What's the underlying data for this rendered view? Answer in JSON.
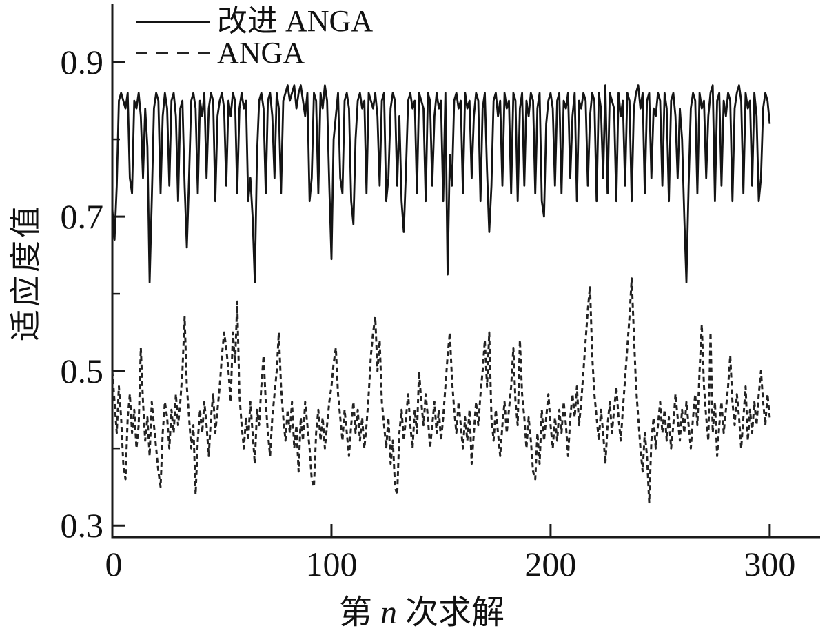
{
  "figure": {
    "background": "#ffffff",
    "axis_color": "#1a1a1a",
    "text_color": "#111111"
  },
  "legend": {
    "items": [
      {
        "label": "改进 ANGA",
        "style": "solid"
      },
      {
        "label": "ANGA",
        "style": "dashed"
      }
    ]
  },
  "axes": {
    "y_title": "适应度值",
    "x_title_prefix": "第",
    "x_title_var": "n",
    "x_title_suffix": "次求解"
  },
  "chart_data": {
    "type": "line",
    "title": "",
    "xlabel": "第 n 次求解",
    "ylabel": "适应度值",
    "xlim": [
      0,
      323
    ],
    "ylim": [
      0.285,
      0.975
    ],
    "xticks": [
      0,
      100,
      200,
      300
    ],
    "xtick_labels": [
      "0",
      "100",
      "200",
      "300"
    ],
    "yticks": [
      0.9,
      0.7,
      0.5,
      0.3
    ],
    "ytick_labels": [
      "0.9",
      "0.7",
      "0.5",
      "0.3"
    ],
    "y_minor_ticks": [
      0.8,
      0.6,
      0.4
    ],
    "grid": false,
    "legend_position": "top-left",
    "x_step": 1,
    "series": [
      {
        "name": "改进 ANGA",
        "line": "solid",
        "color": "#141414",
        "width": 2.8,
        "values": [
          0.71,
          0.67,
          0.74,
          0.85,
          0.86,
          0.85,
          0.84,
          0.86,
          0.75,
          0.73,
          0.85,
          0.84,
          0.86,
          0.83,
          0.75,
          0.84,
          0.79,
          0.615,
          0.72,
          0.84,
          0.86,
          0.85,
          0.73,
          0.83,
          0.86,
          0.84,
          0.74,
          0.85,
          0.86,
          0.83,
          0.72,
          0.84,
          0.85,
          0.74,
          0.66,
          0.75,
          0.85,
          0.86,
          0.84,
          0.73,
          0.85,
          0.83,
          0.86,
          0.75,
          0.84,
          0.86,
          0.85,
          0.72,
          0.83,
          0.85,
          0.86,
          0.84,
          0.74,
          0.85,
          0.83,
          0.86,
          0.85,
          0.73,
          0.84,
          0.86,
          0.84,
          0.85,
          0.72,
          0.75,
          0.7,
          0.615,
          0.78,
          0.85,
          0.86,
          0.84,
          0.73,
          0.85,
          0.86,
          0.83,
          0.75,
          0.86,
          0.84,
          0.73,
          0.85,
          0.86,
          0.87,
          0.85,
          0.86,
          0.87,
          0.84,
          0.86,
          0.87,
          0.85,
          0.83,
          0.86,
          0.72,
          0.75,
          0.86,
          0.85,
          0.73,
          0.86,
          0.84,
          0.87,
          0.85,
          0.74,
          0.645,
          0.8,
          0.83,
          0.86,
          0.75,
          0.73,
          0.85,
          0.86,
          0.84,
          0.72,
          0.69,
          0.8,
          0.85,
          0.86,
          0.84,
          0.85,
          0.73,
          0.86,
          0.85,
          0.84,
          0.86,
          0.83,
          0.74,
          0.85,
          0.86,
          0.72,
          0.75,
          0.84,
          0.86,
          0.85,
          0.74,
          0.83,
          0.72,
          0.68,
          0.76,
          0.85,
          0.86,
          0.84,
          0.85,
          0.73,
          0.86,
          0.85,
          0.84,
          0.72,
          0.86,
          0.85,
          0.74,
          0.83,
          0.86,
          0.84,
          0.85,
          0.72,
          0.86,
          0.625,
          0.78,
          0.74,
          0.85,
          0.86,
          0.84,
          0.85,
          0.73,
          0.86,
          0.84,
          0.85,
          0.75,
          0.83,
          0.86,
          0.85,
          0.72,
          0.84,
          0.86,
          0.76,
          0.68,
          0.74,
          0.85,
          0.86,
          0.83,
          0.85,
          0.74,
          0.86,
          0.84,
          0.85,
          0.73,
          0.86,
          0.85,
          0.72,
          0.84,
          0.86,
          0.74,
          0.85,
          0.83,
          0.86,
          0.85,
          0.73,
          0.84,
          0.86,
          0.72,
          0.7,
          0.82,
          0.85,
          0.86,
          0.84,
          0.74,
          0.85,
          0.86,
          0.73,
          0.85,
          0.84,
          0.86,
          0.75,
          0.83,
          0.86,
          0.72,
          0.85,
          0.84,
          0.86,
          0.85,
          0.74,
          0.83,
          0.86,
          0.85,
          0.72,
          0.86,
          0.84,
          0.75,
          0.87,
          0.73,
          0.86,
          0.85,
          0.84,
          0.72,
          0.86,
          0.83,
          0.85,
          0.74,
          0.86,
          0.85,
          0.72,
          0.84,
          0.86,
          0.87,
          0.84,
          0.86,
          0.73,
          0.85,
          0.86,
          0.75,
          0.84,
          0.83,
          0.86,
          0.85,
          0.74,
          0.86,
          0.84,
          0.72,
          0.85,
          0.86,
          0.83,
          0.75,
          0.84,
          0.8,
          0.7,
          0.615,
          0.74,
          0.84,
          0.86,
          0.85,
          0.73,
          0.86,
          0.84,
          0.85,
          0.75,
          0.83,
          0.86,
          0.87,
          0.72,
          0.85,
          0.86,
          0.74,
          0.85,
          0.83,
          0.86,
          0.85,
          0.72,
          0.84,
          0.86,
          0.87,
          0.85,
          0.73,
          0.86,
          0.84,
          0.85,
          0.74,
          0.86,
          0.83,
          0.72,
          0.75,
          0.84,
          0.86,
          0.85,
          0.82
        ]
      },
      {
        "name": "ANGA",
        "line": "dashed",
        "color": "#232323",
        "width": 3,
        "dash": "7 5",
        "values": [
          0.5,
          0.46,
          0.42,
          0.48,
          0.44,
          0.38,
          0.36,
          0.44,
          0.47,
          0.42,
          0.45,
          0.4,
          0.43,
          0.53,
          0.46,
          0.41,
          0.44,
          0.39,
          0.46,
          0.43,
          0.4,
          0.37,
          0.35,
          0.42,
          0.46,
          0.44,
          0.4,
          0.45,
          0.42,
          0.47,
          0.43,
          0.46,
          0.5,
          0.57,
          0.48,
          0.44,
          0.4,
          0.43,
          0.34,
          0.41,
          0.45,
          0.42,
          0.46,
          0.43,
          0.39,
          0.44,
          0.47,
          0.42,
          0.45,
          0.48,
          0.52,
          0.55,
          0.53,
          0.5,
          0.46,
          0.55,
          0.51,
          0.59,
          0.47,
          0.43,
          0.4,
          0.44,
          0.41,
          0.46,
          0.42,
          0.38,
          0.45,
          0.43,
          0.48,
          0.52,
          0.46,
          0.42,
          0.39,
          0.44,
          0.47,
          0.5,
          0.55,
          0.48,
          0.44,
          0.41,
          0.45,
          0.42,
          0.46,
          0.4,
          0.43,
          0.37,
          0.44,
          0.41,
          0.46,
          0.43,
          0.4,
          0.36,
          0.35,
          0.42,
          0.45,
          0.41,
          0.44,
          0.4,
          0.43,
          0.46,
          0.48,
          0.51,
          0.53,
          0.47,
          0.44,
          0.41,
          0.45,
          0.42,
          0.39,
          0.43,
          0.46,
          0.42,
          0.45,
          0.41,
          0.44,
          0.4,
          0.43,
          0.47,
          0.52,
          0.55,
          0.57,
          0.5,
          0.54,
          0.46,
          0.43,
          0.4,
          0.44,
          0.38,
          0.41,
          0.35,
          0.34,
          0.42,
          0.45,
          0.41,
          0.44,
          0.47,
          0.43,
          0.4,
          0.45,
          0.42,
          0.5,
          0.46,
          0.43,
          0.47,
          0.44,
          0.4,
          0.43,
          0.46,
          0.42,
          0.45,
          0.41,
          0.44,
          0.48,
          0.52,
          0.55,
          0.49,
          0.45,
          0.42,
          0.46,
          0.43,
          0.4,
          0.44,
          0.41,
          0.45,
          0.38,
          0.42,
          0.46,
          0.43,
          0.47,
          0.5,
          0.54,
          0.48,
          0.55,
          0.44,
          0.41,
          0.45,
          0.42,
          0.39,
          0.43,
          0.46,
          0.42,
          0.45,
          0.48,
          0.53,
          0.46,
          0.43,
          0.54,
          0.47,
          0.44,
          0.4,
          0.44,
          0.41,
          0.37,
          0.36,
          0.42,
          0.38,
          0.45,
          0.41,
          0.44,
          0.47,
          0.43,
          0.4,
          0.44,
          0.41,
          0.45,
          0.42,
          0.46,
          0.43,
          0.39,
          0.44,
          0.47,
          0.44,
          0.48,
          0.43,
          0.46,
          0.5,
          0.54,
          0.58,
          0.61,
          0.52,
          0.47,
          0.44,
          0.41,
          0.45,
          0.42,
          0.38,
          0.43,
          0.46,
          0.42,
          0.45,
          0.48,
          0.44,
          0.41,
          0.45,
          0.49,
          0.53,
          0.57,
          0.62,
          0.55,
          0.48,
          0.44,
          0.4,
          0.37,
          0.42,
          0.39,
          0.33,
          0.41,
          0.44,
          0.4,
          0.43,
          0.46,
          0.42,
          0.45,
          0.41,
          0.44,
          0.4,
          0.43,
          0.47,
          0.44,
          0.41,
          0.45,
          0.42,
          0.46,
          0.43,
          0.4,
          0.44,
          0.47,
          0.43,
          0.5,
          0.56,
          0.48,
          0.44,
          0.41,
          0.55,
          0.42,
          0.46,
          0.39,
          0.43,
          0.46,
          0.42,
          0.45,
          0.48,
          0.52,
          0.46,
          0.43,
          0.47,
          0.44,
          0.4,
          0.44,
          0.48,
          0.41,
          0.45,
          0.42,
          0.46,
          0.43,
          0.47,
          0.5,
          0.46,
          0.43,
          0.47,
          0.44
        ]
      }
    ]
  }
}
